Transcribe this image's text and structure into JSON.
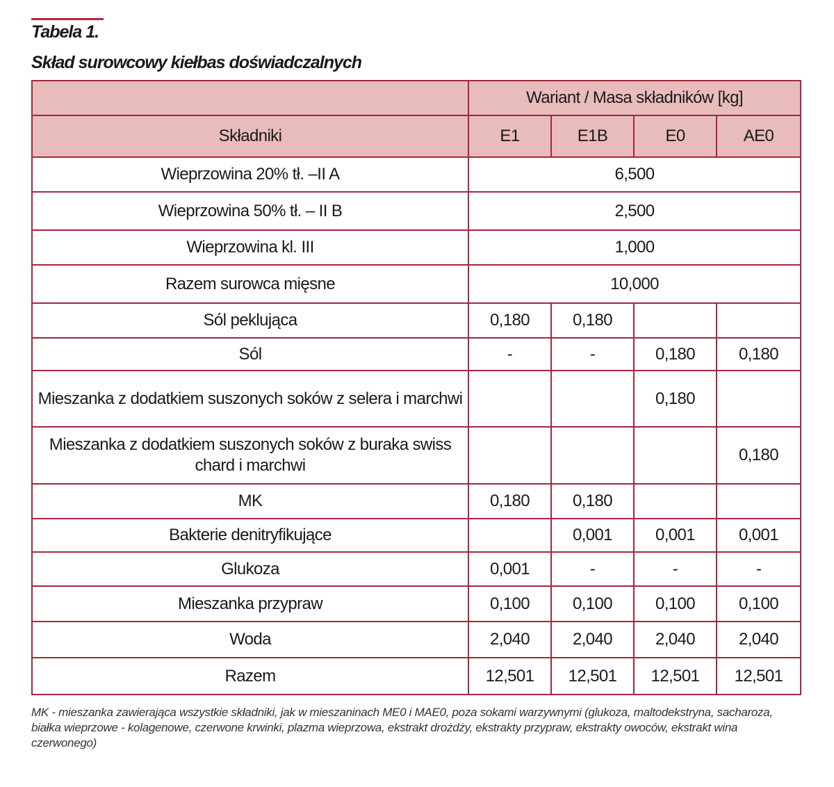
{
  "caption": {
    "label": "Tabela 1.",
    "title": "Skład surowcowy kiełbas doświadczalnych"
  },
  "table": {
    "header": {
      "ingredients": "Składniki",
      "group": "Wariant / Masa składników [kg]",
      "variants": [
        "E1",
        "E1B",
        "E0",
        "AE0"
      ]
    },
    "rows": [
      {
        "name": "Wieprzowina  20% tł. –II A",
        "value": "6,500"
      },
      {
        "name": "Wieprzowina  50% tł. – II B",
        "value": "2,500"
      },
      {
        "name": "Wieprzowina kl. III",
        "value": "1,000"
      },
      {
        "name": "Razem surowca mięsne",
        "value": "10,000"
      },
      {
        "name": "Sól  peklująca",
        "values": [
          "0,180",
          "0,180",
          null,
          null
        ]
      },
      {
        "name": "Sól",
        "values": [
          "-",
          "-",
          "0,180",
          "0,180"
        ]
      },
      {
        "name": "Mieszanka z dodatkiem suszonych soków z selera i marchwi",
        "values": [
          null,
          null,
          "0,180",
          null
        ]
      },
      {
        "name": "Mieszanka z dodatkiem suszonych soków z buraka swiss chard i marchwi",
        "values": [
          null,
          null,
          null,
          "0,180"
        ]
      },
      {
        "name": "MK",
        "values": [
          "0,180",
          "0,180",
          null,
          null
        ]
      },
      {
        "name": "Bakterie denitryfikujące",
        "values": [
          null,
          "0,001",
          "0,001",
          "0,001"
        ]
      },
      {
        "name": "Glukoza",
        "values": [
          "0,001",
          "-",
          "-",
          "-"
        ]
      },
      {
        "name": "Mieszanka przypraw",
        "values": [
          "0,100",
          "0,100",
          "0,100",
          "0,100"
        ]
      },
      {
        "name": "Woda",
        "values": [
          "2,040",
          "2,040",
          "2,040",
          "2,040"
        ]
      },
      {
        "name": "Razem",
        "values": [
          "12,501",
          "12,501",
          "12,501",
          "12,501"
        ]
      }
    ]
  },
  "footnote": "MK - mieszanka zawierająca wszystkie składniki, jak w mieszaninach ME0 i MAE0, poza sokami warzywnymi (glukoza, maltodekstryna, sacharoza, białka wieprzowe - kolagenowe, czerwone krwinki, plazma wieprzowa, ekstrakt drożdży, ekstrakty przypraw, ekstrakty owoców, ekstrakt wina czerwonego)"
}
